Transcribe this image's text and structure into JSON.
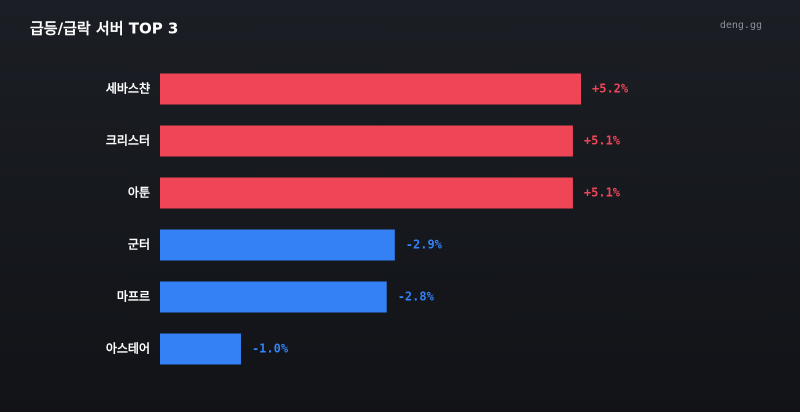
{
  "chart_data": {
    "type": "bar",
    "title": "급등/급락 서버 TOP 3",
    "source": "deng.gg",
    "categories": [
      "세바스챤",
      "크리스터",
      "아툰",
      "군터",
      "마프르",
      "아스테어"
    ],
    "values": [
      5.2,
      5.1,
      5.1,
      -2.9,
      -2.8,
      -1.0
    ],
    "value_labels": [
      "+5.2%",
      "+5.1%",
      "+5.1%",
      "-2.9%",
      "-2.8%",
      "-1.0%"
    ],
    "colors": [
      "#f04556",
      "#f04556",
      "#f04556",
      "#3381f5",
      "#3381f5",
      "#3381f5"
    ]
  }
}
